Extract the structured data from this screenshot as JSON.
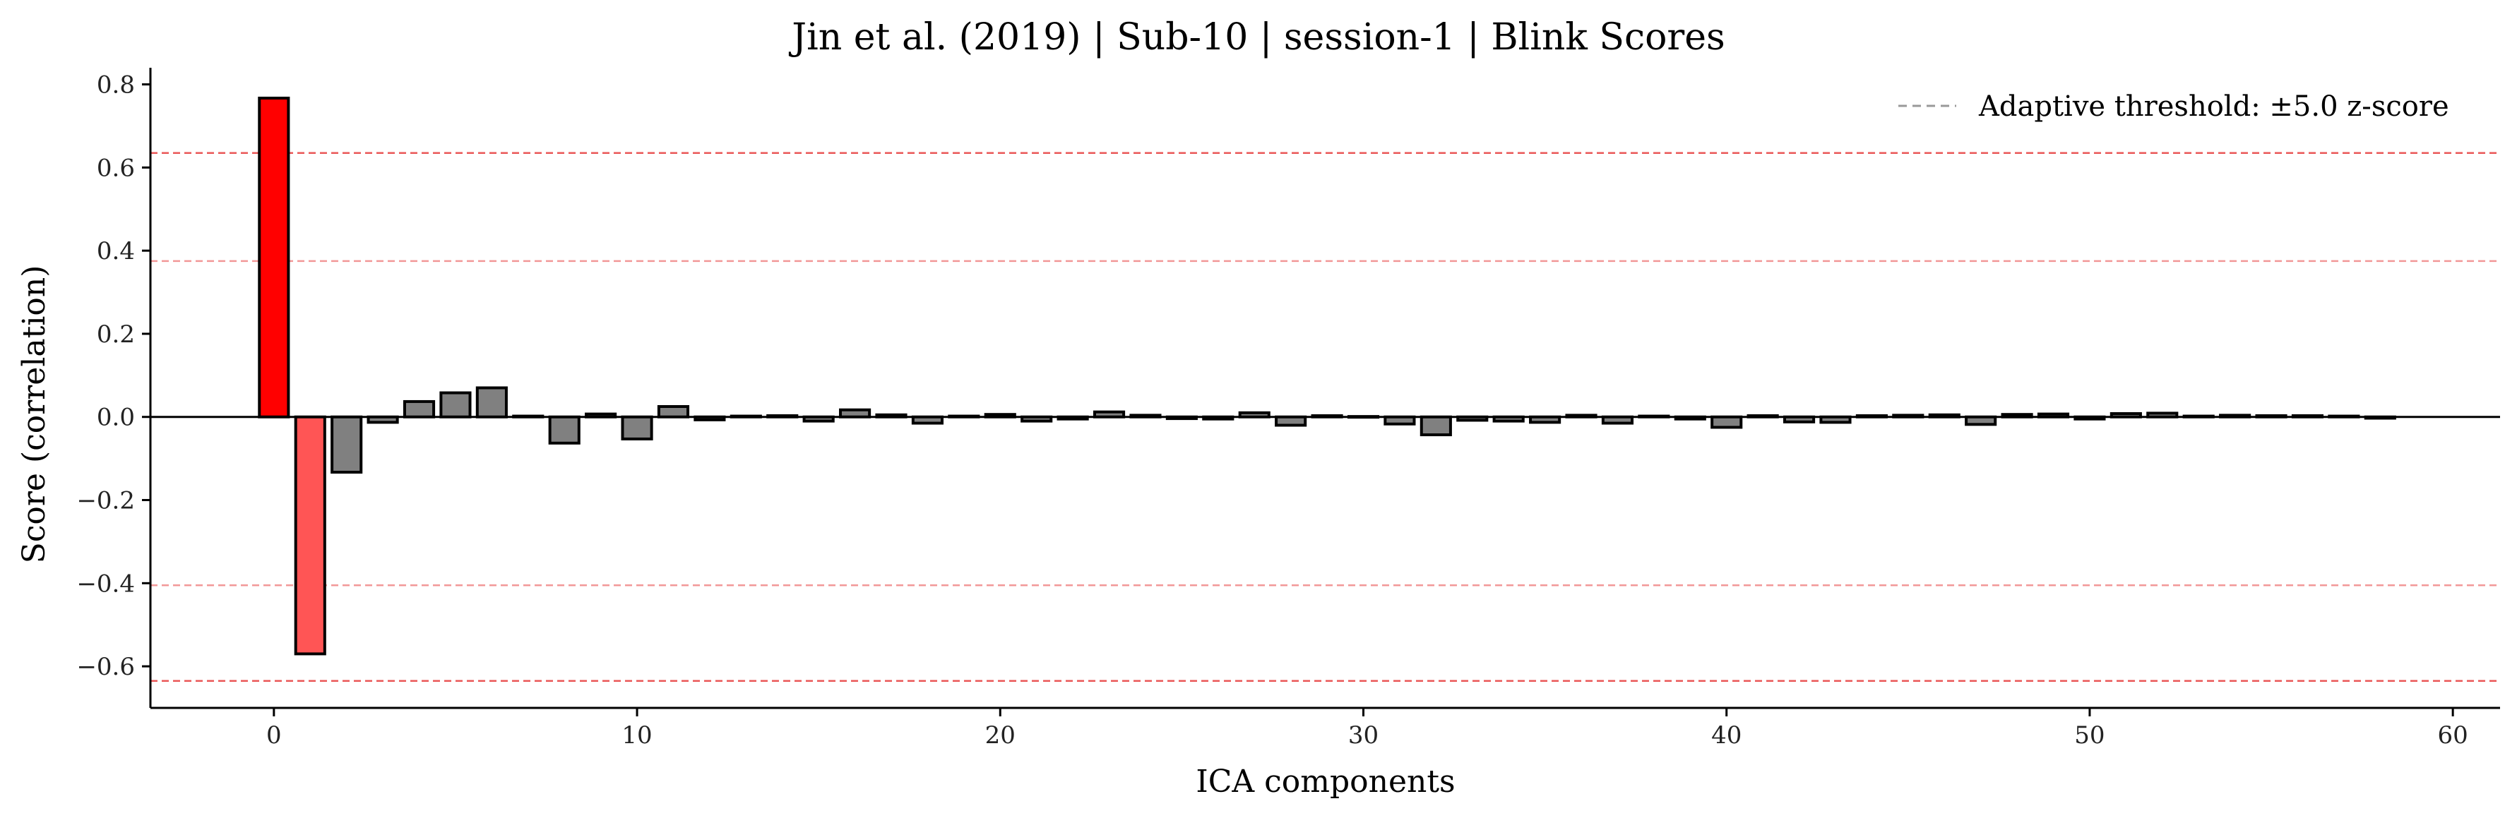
{
  "chart_data": {
    "type": "bar",
    "title": "Jin et al. (2019) | Sub-10 | session-1 | Blink Scores",
    "xlabel": "ICA components",
    "ylabel": "Score (correlation)",
    "xlim": [
      -3.4,
      61.3
    ],
    "ylim": [
      -0.7,
      0.84
    ],
    "xticks": [
      0,
      10,
      20,
      30,
      40,
      50,
      60
    ],
    "xtick_labels": [
      "0",
      "10",
      "20",
      "30",
      "40",
      "50",
      "60"
    ],
    "yticks": [
      0.8,
      0.6,
      0.4,
      0.2,
      0.0,
      -0.2,
      -0.4,
      -0.6
    ],
    "ytick_labels": [
      "0.8",
      "0.6",
      "0.4",
      "0.2",
      "0.0",
      "−0.2",
      "−0.4",
      "−0.6"
    ],
    "zero_line": true,
    "grid": false,
    "legend": {
      "placement": "top-right",
      "entries": [
        {
          "label": "Adaptive threshold: ±5.0 z-score",
          "style": "dashed",
          "color": "#999999"
        }
      ]
    },
    "thresholds": [
      {
        "value": 0.635,
        "color": "#e84545",
        "opacity": 0.9
      },
      {
        "value": 0.375,
        "color": "#ef7f7f",
        "opacity": 0.8
      },
      {
        "value": -0.405,
        "color": "#ef7f7f",
        "opacity": 0.8
      },
      {
        "value": -0.635,
        "color": "#e84545",
        "opacity": 0.9
      }
    ],
    "colors": {
      "strong": "#ff0000",
      "moderate": "#ff5555",
      "normal": "#808080"
    },
    "bars": [
      {
        "x": 0,
        "value": 0.767,
        "color": "#ff0000"
      },
      {
        "x": 1,
        "value": -0.57,
        "color": "#ff5555"
      },
      {
        "x": 2,
        "value": -0.133,
        "color": "#808080"
      },
      {
        "x": 3,
        "value": -0.013,
        "color": "#808080"
      },
      {
        "x": 4,
        "value": 0.037,
        "color": "#808080"
      },
      {
        "x": 5,
        "value": 0.058,
        "color": "#808080"
      },
      {
        "x": 6,
        "value": 0.07,
        "color": "#808080"
      },
      {
        "x": 7,
        "value": 0.002,
        "color": "#808080"
      },
      {
        "x": 8,
        "value": -0.063,
        "color": "#808080"
      },
      {
        "x": 9,
        "value": 0.007,
        "color": "#808080"
      },
      {
        "x": 10,
        "value": -0.053,
        "color": "#808080"
      },
      {
        "x": 11,
        "value": 0.025,
        "color": "#808080"
      },
      {
        "x": 12,
        "value": -0.007,
        "color": "#808080"
      },
      {
        "x": 13,
        "value": 0.002,
        "color": "#808080"
      },
      {
        "x": 14,
        "value": 0.003,
        "color": "#808080"
      },
      {
        "x": 15,
        "value": -0.01,
        "color": "#808080"
      },
      {
        "x": 16,
        "value": 0.017,
        "color": "#808080"
      },
      {
        "x": 17,
        "value": 0.005,
        "color": "#808080"
      },
      {
        "x": 18,
        "value": -0.015,
        "color": "#808080"
      },
      {
        "x": 19,
        "value": 0.002,
        "color": "#808080"
      },
      {
        "x": 20,
        "value": 0.006,
        "color": "#808080"
      },
      {
        "x": 21,
        "value": -0.01,
        "color": "#808080"
      },
      {
        "x": 22,
        "value": -0.005,
        "color": "#808080"
      },
      {
        "x": 23,
        "value": 0.012,
        "color": "#808080"
      },
      {
        "x": 24,
        "value": 0.004,
        "color": "#808080"
      },
      {
        "x": 25,
        "value": -0.004,
        "color": "#808080"
      },
      {
        "x": 26,
        "value": -0.005,
        "color": "#808080"
      },
      {
        "x": 27,
        "value": 0.01,
        "color": "#808080"
      },
      {
        "x": 28,
        "value": -0.02,
        "color": "#808080"
      },
      {
        "x": 29,
        "value": 0.003,
        "color": "#808080"
      },
      {
        "x": 30,
        "value": 0.001,
        "color": "#808080"
      },
      {
        "x": 31,
        "value": -0.017,
        "color": "#808080"
      },
      {
        "x": 32,
        "value": -0.043,
        "color": "#808080"
      },
      {
        "x": 33,
        "value": -0.008,
        "color": "#808080"
      },
      {
        "x": 34,
        "value": -0.01,
        "color": "#808080"
      },
      {
        "x": 35,
        "value": -0.013,
        "color": "#808080"
      },
      {
        "x": 36,
        "value": 0.004,
        "color": "#808080"
      },
      {
        "x": 37,
        "value": -0.015,
        "color": "#808080"
      },
      {
        "x": 38,
        "value": 0.002,
        "color": "#808080"
      },
      {
        "x": 39,
        "value": -0.005,
        "color": "#808080"
      },
      {
        "x": 40,
        "value": -0.025,
        "color": "#808080"
      },
      {
        "x": 41,
        "value": 0.003,
        "color": "#808080"
      },
      {
        "x": 42,
        "value": -0.012,
        "color": "#808080"
      },
      {
        "x": 43,
        "value": -0.013,
        "color": "#808080"
      },
      {
        "x": 44,
        "value": 0.003,
        "color": "#808080"
      },
      {
        "x": 45,
        "value": 0.004,
        "color": "#808080"
      },
      {
        "x": 46,
        "value": 0.005,
        "color": "#808080"
      },
      {
        "x": 47,
        "value": -0.018,
        "color": "#808080"
      },
      {
        "x": 48,
        "value": 0.006,
        "color": "#808080"
      },
      {
        "x": 49,
        "value": 0.007,
        "color": "#808080"
      },
      {
        "x": 50,
        "value": -0.005,
        "color": "#808080"
      },
      {
        "x": 51,
        "value": 0.008,
        "color": "#808080"
      },
      {
        "x": 52,
        "value": 0.009,
        "color": "#808080"
      },
      {
        "x": 53,
        "value": 0.002,
        "color": "#808080"
      },
      {
        "x": 54,
        "value": 0.004,
        "color": "#808080"
      },
      {
        "x": 55,
        "value": 0.003,
        "color": "#808080"
      },
      {
        "x": 56,
        "value": 0.003,
        "color": "#808080"
      },
      {
        "x": 57,
        "value": 0.002,
        "color": "#808080"
      },
      {
        "x": 58,
        "value": -0.003,
        "color": "#808080"
      }
    ]
  }
}
